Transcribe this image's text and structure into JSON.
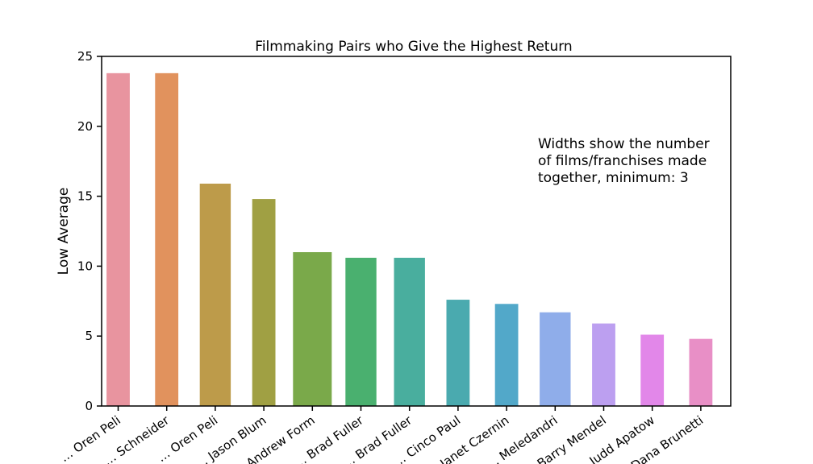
{
  "chart_data": {
    "type": "bar",
    "title": "Filmmaking Pairs who Give the Highest Return",
    "xlabel": "",
    "ylabel": "Low Average",
    "ylim": [
      0,
      25
    ],
    "yticks": [
      0,
      5,
      10,
      15,
      20,
      25
    ],
    "grid": false,
    "annotation": [
      "Widths show the number",
      "of films/franchises made",
      "together, minimum: 3"
    ],
    "categories": [
      "… Oren Peli",
      "… Schneider",
      "… Oren Peli",
      "… Jason Blum",
      "… Andrew Form",
      "… Brad Fuller",
      "… Brad Fuller",
      "… Cinco Paul",
      "… Janet Czernin",
      "… Meledandri",
      "… Barry Mendel",
      "… Judd Apatow",
      "… Dana Brunetti"
    ],
    "values": [
      23.8,
      23.8,
      15.9,
      14.8,
      11.0,
      10.6,
      10.6,
      7.6,
      7.3,
      6.7,
      5.9,
      5.1,
      4.8
    ],
    "widths": [
      3,
      3,
      4,
      3,
      5,
      4,
      4,
      3,
      3,
      4,
      3,
      3,
      3
    ],
    "colors": [
      "#e8949f",
      "#e1925d",
      "#bd9b4a",
      "#a0a043",
      "#7aa94a",
      "#4ab06f",
      "#49ae9e",
      "#4aaaaf",
      "#52a8c9",
      "#8fadea",
      "#bc9ff0",
      "#e287e9",
      "#e88fc6"
    ]
  }
}
